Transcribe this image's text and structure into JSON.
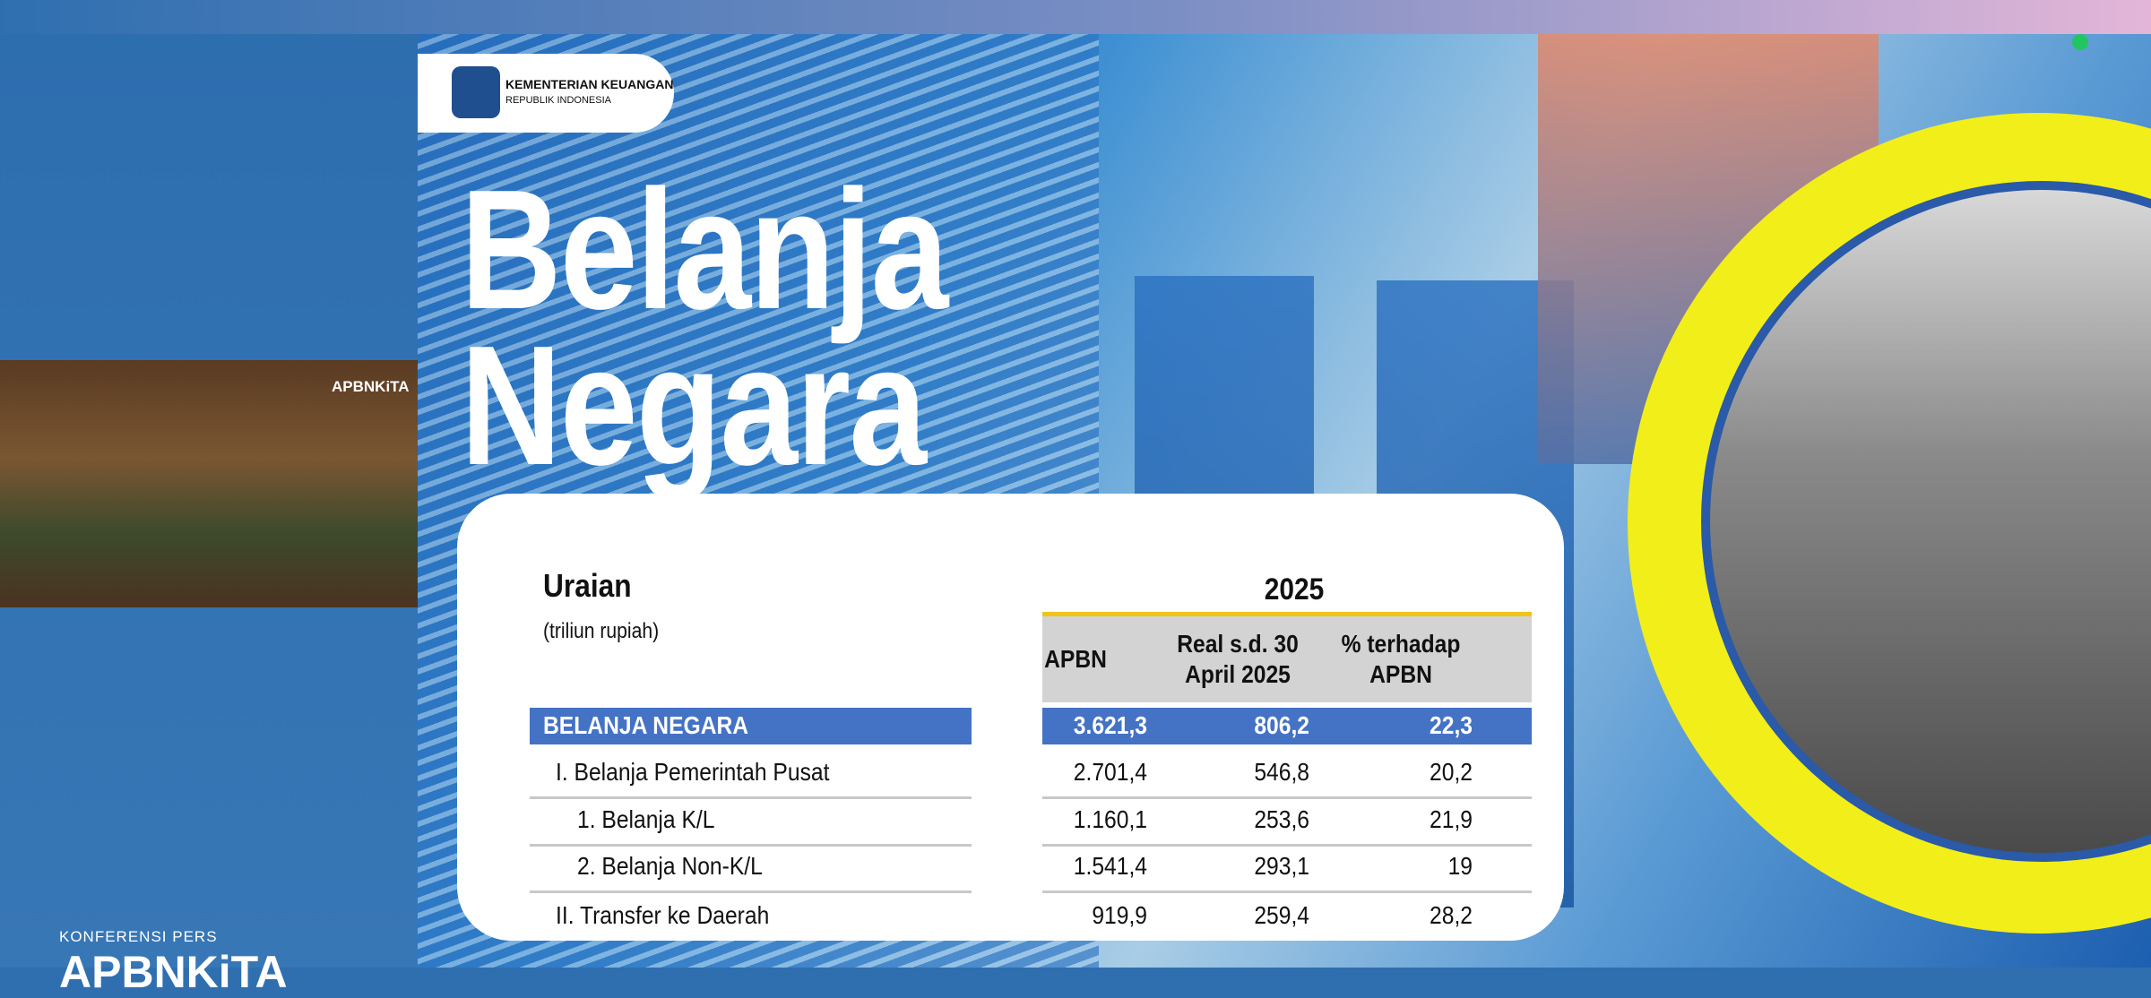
{
  "sidebar": {
    "label": "KONFERENSI PERS",
    "brand": "APBNKiTA"
  },
  "video": {
    "brand": "APBNKiTA"
  },
  "slide": {
    "logo": {
      "line1": "KEMENTERIAN KEUANGAN",
      "line2": "REPUBLIK INDONESIA"
    },
    "title": [
      "Belanja",
      "Negara"
    ],
    "table": {
      "header": "Uraian",
      "unit": "(triliun rupiah)",
      "year": "2025",
      "columns": [
        "APBN",
        "Real s.d. 30 April 2025",
        "% terhadap APBN"
      ],
      "rows": [
        [
          "BELANJA NEGARA",
          "3.621,3",
          "806,2",
          "22,3"
        ],
        [
          "I. Belanja Pemerintah Pusat",
          "2.701,4",
          "546,8",
          "20,2"
        ],
        [
          "1. Belanja K/L",
          "1.160,1",
          "253,6",
          "21,9"
        ],
        [
          "2. Belanja Non-K/L",
          "1.541,4",
          "293,1",
          "19"
        ],
        [
          "II. Transfer ke Daerah",
          "919,9",
          "259,4",
          "28,2"
        ]
      ]
    }
  }
}
